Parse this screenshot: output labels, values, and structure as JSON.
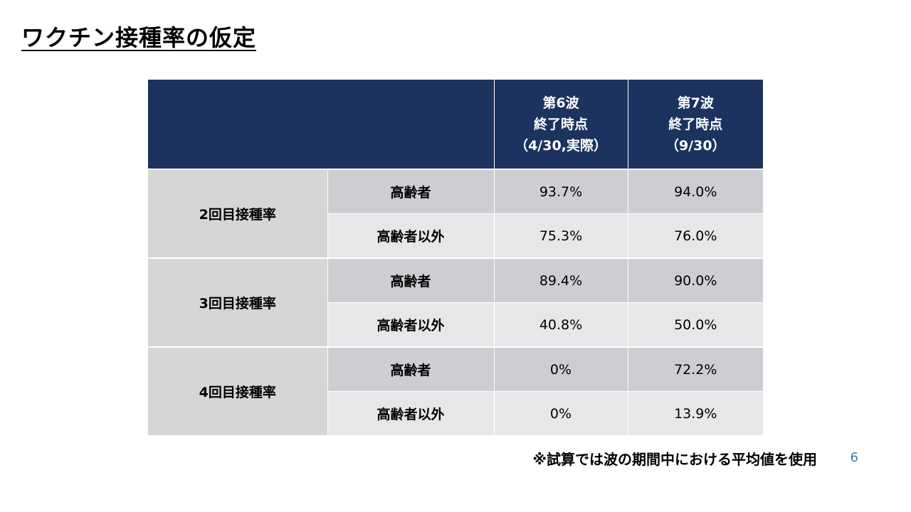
{
  "slide": {
    "title": "ワクチン接種率の仮定",
    "footnote": "※試算では波の期間中における平均値を使用",
    "page_number": "6"
  },
  "table": {
    "columns": [
      {
        "line1": "第6波",
        "line2": "終了時点",
        "line3": "（4/30,実際）"
      },
      {
        "line1": "第7波",
        "line2": "終了時点",
        "line3": "（9/30）"
      }
    ],
    "groups": [
      {
        "label": "2回目接種率",
        "rows": [
          {
            "sub": "高齢者",
            "values": [
              "93.7%",
              "94.0%"
            ]
          },
          {
            "sub": "高齢者以外",
            "values": [
              "75.3%",
              "76.0%"
            ]
          }
        ]
      },
      {
        "label": "3回目接種率",
        "rows": [
          {
            "sub": "高齢者",
            "values": [
              "89.4%",
              "90.0%"
            ]
          },
          {
            "sub": "高齢者以外",
            "values": [
              "40.8%",
              "50.0%"
            ]
          }
        ]
      },
      {
        "label": "4回目接種率",
        "rows": [
          {
            "sub": "高齢者",
            "values": [
              "0%",
              "72.2%"
            ]
          },
          {
            "sub": "高齢者以外",
            "values": [
              "0%",
              "13.9%"
            ]
          }
        ]
      }
    ]
  },
  "colors": {
    "header_bg": "#1c325f",
    "group_bg": "#d6d6d6",
    "row_dark_bg": "#cdced1",
    "row_light_bg": "#e7e7e9",
    "page_number": "#3c78b4"
  }
}
